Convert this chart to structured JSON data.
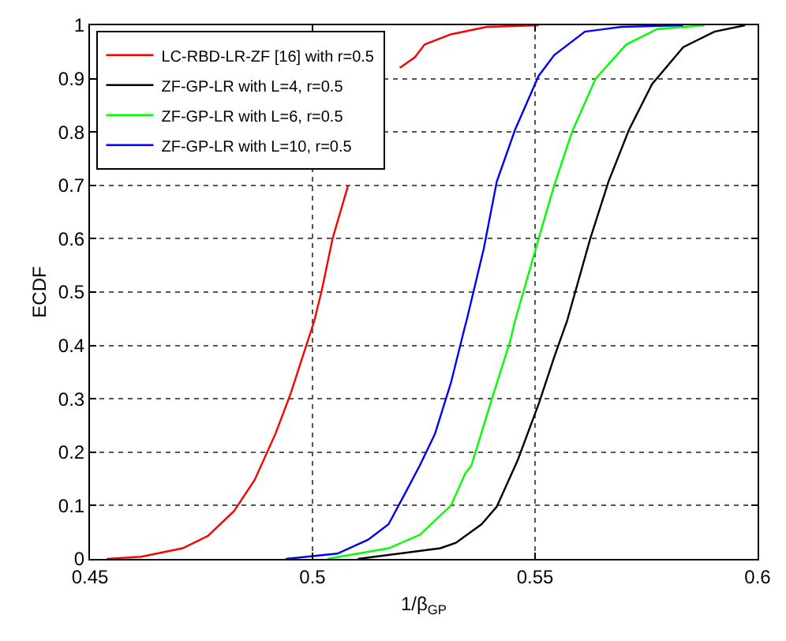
{
  "chart_data": {
    "type": "line",
    "xlabel": "1/β$_{GP}$",
    "ylabel": "ECDF",
    "xlim": [
      0.45,
      0.6
    ],
    "xticks": [
      0.45,
      0.5,
      0.55,
      0.6
    ],
    "ylim": [
      0,
      1
    ],
    "yticks": [
      0,
      0.1,
      0.2,
      0.3,
      0.4,
      0.5,
      0.6,
      0.7,
      0.8,
      0.9,
      1
    ],
    "grid": true,
    "legend": "top left",
    "marker": "none",
    "line_style": "solid",
    "series": [
      {
        "name": "LC-RBD-LR-ZF [16] with r=0.5",
        "color": "#ff0000",
        "x": [
          0.4538,
          0.4615,
          0.4708,
          0.4765,
          0.4824,
          0.487,
          0.4917,
          0.4951,
          0.4986,
          0.5004,
          0.5021,
          0.5045,
          0.508,
          0.5115,
          0.5149,
          0.5196,
          0.523,
          0.5252,
          0.5311,
          0.5392,
          0.5508
        ],
        "values": [
          0,
          0.004,
          0.02,
          0.043,
          0.09,
          0.148,
          0.235,
          0.31,
          0.4,
          0.446,
          0.504,
          0.6,
          0.7,
          null,
          null,
          0.92,
          0.94,
          0.964,
          0.983,
          0.997,
          1
        ]
      },
      {
        "name": "ZF-GP-LR with L=4, r=0.5",
        "color": "#000000",
        "x": [
          0.5102,
          0.5287,
          0.5322,
          0.538,
          0.5414,
          0.5461,
          0.5508,
          0.5543,
          0.5572,
          0.5624,
          0.5665,
          0.5711,
          0.5763,
          0.5833,
          0.5903,
          0.5972
        ],
        "values": [
          0,
          0.02,
          0.03,
          0.065,
          0.098,
          0.185,
          0.29,
          0.378,
          0.446,
          0.6,
          0.707,
          0.804,
          0.89,
          0.959,
          0.988,
          1
        ]
      },
      {
        "name": "ZF-GP-LR with L=6, r=0.5",
        "color": "#00ff00",
        "x": [
          0.5033,
          0.5171,
          0.5241,
          0.5311,
          0.5343,
          0.5357,
          0.5403,
          0.5444,
          0.5455,
          0.5508,
          0.5543,
          0.5583,
          0.5636,
          0.5705,
          0.5775,
          0.588
        ],
        "values": [
          0,
          0.02,
          0.045,
          0.1,
          0.16,
          0.175,
          0.3,
          0.408,
          0.446,
          0.6,
          0.7,
          0.8,
          0.9,
          0.964,
          0.993,
          1
        ]
      },
      {
        "name": "ZF-GP-LR with L=10, r=0.5",
        "color": "#0000ff",
        "x": [
          0.494,
          0.5056,
          0.5125,
          0.5171,
          0.5217,
          0.5241,
          0.5275,
          0.5311,
          0.5343,
          0.5346,
          0.5385,
          0.5414,
          0.5455,
          0.5508,
          0.5543,
          0.5612,
          0.5694,
          0.5833
        ],
        "values": [
          0,
          0.01,
          0.036,
          0.065,
          0.137,
          0.175,
          0.234,
          0.33,
          0.437,
          0.446,
          0.582,
          0.707,
          0.804,
          0.905,
          0.944,
          0.988,
          0.997,
          1
        ]
      }
    ]
  }
}
